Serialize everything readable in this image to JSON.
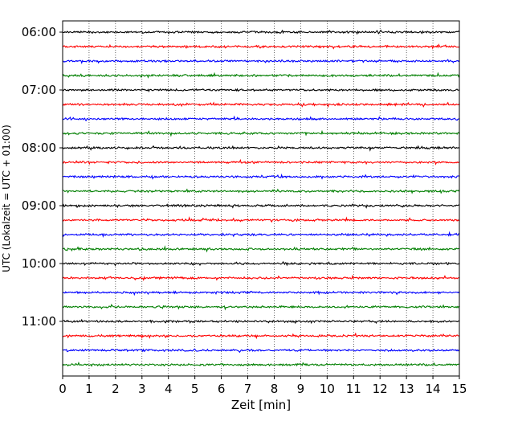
{
  "chart_data": {
    "type": "line",
    "title": "",
    "xlabel": "Zeit  [min]",
    "ylabel": "UTC (Lokalzeit = UTC + 01:00)",
    "xlim": [
      0,
      15
    ],
    "x_ticks": [
      0,
      1,
      2,
      3,
      4,
      5,
      6,
      7,
      8,
      9,
      10,
      11,
      12,
      13,
      14,
      15
    ],
    "x_tick_labels": [
      "0",
      "1",
      "2",
      "3",
      "4",
      "5",
      "6",
      "7",
      "8",
      "9",
      "10",
      "11",
      "12",
      "13",
      "14",
      "15"
    ],
    "y_tick_labels": [
      "06:00",
      "07:00",
      "08:00",
      "09:00",
      "10:00",
      "11:00"
    ],
    "y_tick_rows": [
      0,
      4,
      8,
      12,
      16,
      20
    ],
    "grid": "vertical-dotted",
    "legend": "none",
    "trace_colors": [
      "#000000",
      "#ff0000",
      "#0000ff",
      "#007f00"
    ],
    "series": [
      {
        "start": "06:00"
      },
      {
        "start": "06:15"
      },
      {
        "start": "06:30"
      },
      {
        "start": "06:45"
      },
      {
        "start": "07:00"
      },
      {
        "start": "07:15"
      },
      {
        "start": "07:30"
      },
      {
        "start": "07:45"
      },
      {
        "start": "08:00"
      },
      {
        "start": "08:15"
      },
      {
        "start": "08:30"
      },
      {
        "start": "08:45"
      },
      {
        "start": "09:00"
      },
      {
        "start": "09:15"
      },
      {
        "start": "09:30"
      },
      {
        "start": "09:45"
      },
      {
        "start": "10:00"
      },
      {
        "start": "10:15"
      },
      {
        "start": "10:30"
      },
      {
        "start": "10:45"
      },
      {
        "start": "11:00"
      },
      {
        "start": "11:15"
      },
      {
        "start": "11:30"
      },
      {
        "start": "11:45"
      }
    ]
  }
}
